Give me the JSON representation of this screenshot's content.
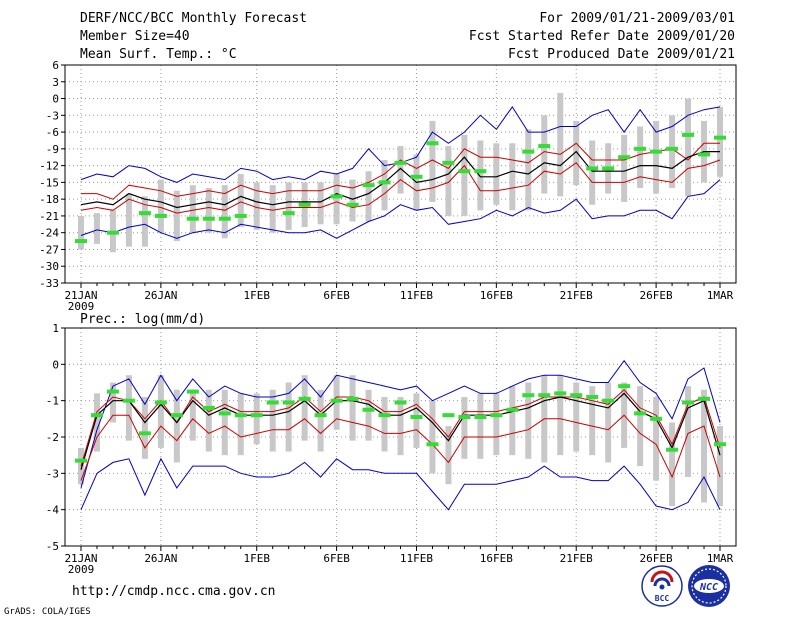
{
  "header": {
    "title": "DERF/NCC/BCC Monthly Forecast",
    "member_size": "Member Size=40",
    "variable": "Mean Surf. Temp.: °C",
    "forecast_period": "For 2009/01/21-2009/03/01",
    "start_date": "Fcst Started Refer Date 2009/01/20",
    "produced_date": "Fcst Produced Date 2009/01/21"
  },
  "footer": {
    "url": "http://cmdp.ncc.cma.gov.cn",
    "grads": "GrADS: COLA/IGES",
    "logo_bcc": "BCC",
    "logo_ncc": "NCC"
  },
  "colors": {
    "envelope": "#0000cc",
    "spread": "#cc0000",
    "mean": "#000000",
    "observed": "#33dd33",
    "bar": "#c8c8c8",
    "grid": "#9a9a9a"
  },
  "chart_data": [
    {
      "type": "line",
      "title": "Mean Surf. Temp.: °C",
      "x": [
        0,
        1,
        2,
        3,
        4,
        5,
        6,
        7,
        8,
        9,
        10,
        11,
        12,
        13,
        14,
        15,
        16,
        17,
        18,
        19,
        20,
        21,
        22,
        23,
        24,
        25,
        26,
        27,
        28,
        29,
        30,
        31,
        32,
        33,
        34,
        35,
        36,
        37,
        38,
        39,
        40
      ],
      "xtick_positions": [
        0,
        5,
        11,
        16,
        21,
        26,
        31,
        36,
        40
      ],
      "xtick_labels": [
        "21JAN",
        "26JAN",
        "1FEB",
        "6FEB",
        "11FEB",
        "16FEB",
        "21FEB",
        "26FEB",
        "1MAR"
      ],
      "xtick_year": "2009",
      "ylim": [
        -33,
        6
      ],
      "yticks": [
        6,
        3,
        0,
        -3,
        -6,
        -9,
        -12,
        -15,
        -18,
        -21,
        -24,
        -27,
        -30,
        -33
      ],
      "ytick_labels": [
        "6",
        "3",
        "0",
        "-3",
        "-6",
        "-9",
        "-12",
        "-15",
        "-18",
        "-21",
        "-24",
        "-27",
        "-30",
        "-33"
      ],
      "grid": true,
      "series": [
        {
          "name": "Ensemble max",
          "values": [
            -14.5,
            -13.5,
            -14,
            -12,
            -12.5,
            -14,
            -15,
            -13.5,
            -14,
            -14.5,
            -12.5,
            -13,
            -14.5,
            -14,
            -14.5,
            -13,
            -13.5,
            -12.5,
            -9,
            -12,
            -11.5,
            -10.5,
            -6,
            -8,
            -6,
            -3,
            -5.5,
            -1.5,
            -6,
            -6,
            -5,
            -5,
            -3,
            -2,
            -6,
            -2,
            -6,
            -5,
            -3,
            -2,
            -1.5
          ]
        },
        {
          "name": "Spread upper",
          "values": [
            -17,
            -17,
            -18,
            -15.5,
            -16,
            -16.5,
            -17.5,
            -17,
            -16.5,
            -17,
            -15.5,
            -16.5,
            -17,
            -16.5,
            -16.5,
            -16.5,
            -15.5,
            -16,
            -15,
            -13.5,
            -11,
            -12.5,
            -11,
            -12.5,
            -9,
            -10.5,
            -10.5,
            -11,
            -11.5,
            -9.5,
            -10,
            -8,
            -11,
            -11,
            -11,
            -10,
            -9.5,
            -9,
            -11,
            -8,
            -8
          ]
        },
        {
          "name": "Ensemble mean",
          "values": [
            -19,
            -18.5,
            -19,
            -17,
            -18,
            -18.5,
            -19.5,
            -19,
            -18.5,
            -19,
            -17.5,
            -18.5,
            -19,
            -18.5,
            -18.5,
            -18.5,
            -17,
            -18,
            -17,
            -15,
            -12.5,
            -15,
            -14.5,
            -13.5,
            -10.5,
            -14,
            -14,
            -13,
            -13.5,
            -11.5,
            -12,
            -9.5,
            -13,
            -13,
            -13,
            -12,
            -12,
            -12.5,
            -10.5,
            -9.5,
            -9.5
          ]
        },
        {
          "name": "Spread lower",
          "values": [
            -20,
            -19.5,
            -20,
            -18,
            -19,
            -19.5,
            -20.5,
            -20,
            -19.5,
            -20,
            -18.5,
            -19.5,
            -20,
            -19.5,
            -19.5,
            -19.5,
            -18.5,
            -19.5,
            -19,
            -17,
            -14.5,
            -16.5,
            -16,
            -15,
            -12,
            -16.5,
            -16.5,
            -16,
            -15.5,
            -13,
            -13.5,
            -11.5,
            -15,
            -15,
            -15,
            -14,
            -14.5,
            -15,
            -12.5,
            -12,
            -11
          ]
        },
        {
          "name": "Ensemble min",
          "values": [
            -24.5,
            -23.5,
            -24,
            -23,
            -22.5,
            -24,
            -25,
            -24,
            -23.5,
            -24,
            -22.5,
            -23,
            -23.5,
            -24,
            -24,
            -23.5,
            -25,
            -23.5,
            -22,
            -21,
            -19,
            -20,
            -19.5,
            -22.5,
            -22,
            -21.5,
            -20,
            -21,
            -19.5,
            -20.5,
            -20,
            -18,
            -21.5,
            -21,
            -21,
            -20,
            -20,
            -21.5,
            -17.5,
            -17,
            -14.5
          ]
        },
        {
          "name": "Observed",
          "values": [
            -25.5,
            null,
            -24,
            null,
            -20.5,
            -21,
            null,
            -21.5,
            -21.5,
            -21.5,
            -21,
            null,
            null,
            -20.5,
            -19,
            null,
            -17.5,
            -19,
            -15.5,
            -15,
            -11.5,
            -14,
            -8,
            -11.5,
            -13,
            -13,
            null,
            null,
            -9.5,
            -8.5,
            null,
            null,
            -12.5,
            -12.5,
            -10.5,
            -9,
            -9.5,
            -9,
            -6.5,
            -10,
            -7
          ]
        }
      ],
      "boxes": [
        {
          "low": -27,
          "high": -21
        },
        {
          "low": -26,
          "high": -20.5
        },
        {
          "low": -27.5,
          "high": -20
        },
        {
          "low": -26.5,
          "high": -17
        },
        {
          "low": -26.5,
          "high": -17.5
        },
        {
          "low": -24,
          "high": -14.5
        },
        {
          "low": -25.5,
          "high": -16.5
        },
        {
          "low": -24,
          "high": -15.5
        },
        {
          "low": -24,
          "high": -16
        },
        {
          "low": -25,
          "high": -15.5
        },
        {
          "low": -23,
          "high": -13.5
        },
        {
          "low": -23.5,
          "high": -15
        },
        {
          "low": -24,
          "high": -15.5
        },
        {
          "low": -23.5,
          "high": -15
        },
        {
          "low": -23,
          "high": -15
        },
        {
          "low": -22.5,
          "high": -15
        },
        {
          "low": -22.5,
          "high": -13.5
        },
        {
          "low": -22,
          "high": -14.5
        },
        {
          "low": -22,
          "high": -13
        },
        {
          "low": -20,
          "high": -11
        },
        {
          "low": -17,
          "high": -8.5
        },
        {
          "low": -20,
          "high": -10
        },
        {
          "low": -18.5,
          "high": -4
        },
        {
          "low": -21,
          "high": -8.5
        },
        {
          "low": -21,
          "high": -6.5
        },
        {
          "low": -20,
          "high": -7.5
        },
        {
          "low": -19,
          "high": -8
        },
        {
          "low": -20,
          "high": -8
        },
        {
          "low": -20,
          "high": -5.5
        },
        {
          "low": -17,
          "high": -3
        },
        {
          "low": -17.5,
          "high": 1
        },
        {
          "low": -15.5,
          "high": -4
        },
        {
          "low": -19,
          "high": -7.5
        },
        {
          "low": -17,
          "high": -8
        },
        {
          "low": -18.5,
          "high": -6.5
        },
        {
          "low": -16,
          "high": -5
        },
        {
          "low": -17,
          "high": -4
        },
        {
          "low": -16,
          "high": -3
        },
        {
          "low": -17.5,
          "high": 0
        },
        {
          "low": -15,
          "high": -4
        },
        {
          "low": -14,
          "high": -1.5
        }
      ]
    },
    {
      "type": "line",
      "title": "Prec.: log(mm/d)",
      "x": [
        0,
        1,
        2,
        3,
        4,
        5,
        6,
        7,
        8,
        9,
        10,
        11,
        12,
        13,
        14,
        15,
        16,
        17,
        18,
        19,
        20,
        21,
        22,
        23,
        24,
        25,
        26,
        27,
        28,
        29,
        30,
        31,
        32,
        33,
        34,
        35,
        36,
        37,
        38,
        39,
        40
      ],
      "xtick_positions": [
        0,
        5,
        11,
        16,
        21,
        26,
        31,
        36,
        40
      ],
      "xtick_labels": [
        "21JAN",
        "26JAN",
        "1FEB",
        "6FEB",
        "11FEB",
        "16FEB",
        "21FEB",
        "26FEB",
        "1MAR"
      ],
      "xtick_year": "2009",
      "ylim": [
        -5,
        1
      ],
      "yticks": [
        1,
        0,
        -1,
        -2,
        -3,
        -4,
        -5
      ],
      "ytick_labels": [
        "1",
        "0",
        "-1",
        "-2",
        "-3",
        "-4",
        "-5"
      ],
      "grid": true,
      "series": [
        {
          "name": "Ensemble max",
          "values": [
            -3.4,
            -1.8,
            -0.6,
            -0.4,
            -1.1,
            -0.3,
            -1.0,
            -0.4,
            -0.9,
            -0.6,
            -0.8,
            -0.9,
            -0.9,
            -0.8,
            -0.4,
            -0.9,
            -0.3,
            -0.4,
            -0.5,
            -0.6,
            -0.7,
            -0.6,
            -1.0,
            -0.8,
            -0.6,
            -0.8,
            -0.8,
            -0.6,
            -0.4,
            -0.3,
            -0.3,
            -0.4,
            -0.5,
            -0.5,
            0.1,
            -0.5,
            -0.8,
            -1.5,
            -0.4,
            -0.1,
            -1.6
          ]
        },
        {
          "name": "Spread upper",
          "values": [
            -2.8,
            -1.3,
            -0.9,
            -1.0,
            -1.5,
            -1.0,
            -1.6,
            -0.9,
            -1.3,
            -1.1,
            -1.3,
            -1.3,
            -1.3,
            -1.2,
            -0.9,
            -1.3,
            -0.9,
            -0.9,
            -1.0,
            -1.3,
            -1.3,
            -1.1,
            -1.5,
            -2.0,
            -1.3,
            -1.3,
            -1.3,
            -1.2,
            -1.1,
            -0.9,
            -0.9,
            -0.9,
            -1.0,
            -1.1,
            -0.7,
            -1.2,
            -1.4,
            -2.2,
            -1.1,
            -0.9,
            -2.3
          ]
        },
        {
          "name": "Ensemble mean",
          "values": [
            -2.9,
            -1.4,
            -1.0,
            -1.0,
            -1.6,
            -1.1,
            -1.6,
            -1.0,
            -1.4,
            -1.2,
            -1.4,
            -1.4,
            -1.4,
            -1.3,
            -1.0,
            -1.4,
            -1.0,
            -1.0,
            -1.1,
            -1.4,
            -1.4,
            -1.2,
            -1.6,
            -2.1,
            -1.4,
            -1.4,
            -1.4,
            -1.3,
            -1.2,
            -1.0,
            -0.9,
            -1.0,
            -1.1,
            -1.2,
            -0.8,
            -1.3,
            -1.5,
            -2.3,
            -1.2,
            -1.0,
            -2.5
          ]
        },
        {
          "name": "Spread lower",
          "values": [
            -3.2,
            -2.0,
            -1.4,
            -1.4,
            -2.3,
            -1.7,
            -2.1,
            -1.5,
            -1.9,
            -1.7,
            -2.0,
            -1.9,
            -1.8,
            -1.8,
            -1.5,
            -1.9,
            -1.5,
            -1.6,
            -1.7,
            -1.9,
            -1.9,
            -1.8,
            -2.2,
            -2.7,
            -2.0,
            -2.0,
            -2.0,
            -1.9,
            -1.8,
            -1.5,
            -1.5,
            -1.6,
            -1.7,
            -1.8,
            -1.4,
            -1.9,
            -2.2,
            -3.1,
            -1.9,
            -1.7,
            -3.1
          ]
        },
        {
          "name": "Ensemble min",
          "values": [
            -4.0,
            -3.0,
            -2.7,
            -2.6,
            -3.6,
            -2.6,
            -3.4,
            -2.8,
            -2.8,
            -2.8,
            -3.0,
            -3.1,
            -3.1,
            -3.0,
            -2.7,
            -3.1,
            -2.6,
            -2.9,
            -2.9,
            -3.0,
            -3.0,
            -3.0,
            -3.5,
            -4.0,
            -3.3,
            -3.3,
            -3.3,
            -3.2,
            -3.1,
            -2.8,
            -3.1,
            -3.1,
            -3.2,
            -3.2,
            -2.8,
            -3.3,
            -3.9,
            -4.0,
            -3.8,
            -3.1,
            -4.0
          ]
        },
        {
          "name": "Observed",
          "values": [
            -2.65,
            -1.4,
            -0.75,
            -1.0,
            -1.9,
            -1.05,
            -1.4,
            -0.75,
            -1.2,
            -1.35,
            -1.4,
            -1.4,
            -1.05,
            -1.05,
            -0.95,
            -1.4,
            -1.0,
            -0.95,
            -1.25,
            -1.4,
            -1.05,
            -1.45,
            -2.2,
            -1.4,
            -1.45,
            -1.45,
            -1.4,
            -1.25,
            -0.85,
            -0.85,
            -0.8,
            -0.85,
            -0.9,
            -1.0,
            -0.6,
            -1.35,
            -1.5,
            -2.35,
            -1.05,
            -0.95,
            -2.2
          ]
        }
      ],
      "boxes": [
        {
          "low": -3.3,
          "high": -2.3
        },
        {
          "low": -2.4,
          "high": -0.8
        },
        {
          "low": -1.6,
          "high": -0.5
        },
        {
          "low": -2.1,
          "high": -0.3
        },
        {
          "low": -2.6,
          "high": -0.9
        },
        {
          "low": -2.3,
          "high": -0.3
        },
        {
          "low": -2.7,
          "high": -0.7
        },
        {
          "low": -2.1,
          "high": -0.7
        },
        {
          "low": -2.4,
          "high": -0.7
        },
        {
          "low": -2.5,
          "high": -0.7
        },
        {
          "low": -2.5,
          "high": -0.8
        },
        {
          "low": -2.2,
          "high": -0.8
        },
        {
          "low": -2.4,
          "high": -0.7
        },
        {
          "low": -2.4,
          "high": -0.5
        },
        {
          "low": -2.1,
          "high": -0.3
        },
        {
          "low": -2.4,
          "high": -0.7
        },
        {
          "low": -1.8,
          "high": -0.3
        },
        {
          "low": -2.1,
          "high": -0.3
        },
        {
          "low": -2.1,
          "high": -0.7
        },
        {
          "low": -2.4,
          "high": -0.9
        },
        {
          "low": -2.5,
          "high": -0.9
        },
        {
          "low": -2.3,
          "high": -0.8
        },
        {
          "low": -3.0,
          "high": -1.0
        },
        {
          "low": -3.3,
          "high": -1.7
        },
        {
          "low": -2.6,
          "high": -0.9
        },
        {
          "low": -2.6,
          "high": -0.8
        },
        {
          "low": -2.5,
          "high": -0.8
        },
        {
          "low": -2.5,
          "high": -0.6
        },
        {
          "low": -2.6,
          "high": -0.5
        },
        {
          "low": -2.7,
          "high": -0.3
        },
        {
          "low": -2.5,
          "high": -0.3
        },
        {
          "low": -2.4,
          "high": -0.5
        },
        {
          "low": -2.5,
          "high": -0.6
        },
        {
          "low": -2.7,
          "high": -0.5
        },
        {
          "low": -2.3,
          "high": -0.5
        },
        {
          "low": -2.8,
          "high": -0.6
        },
        {
          "low": -3.2,
          "high": -0.9
        },
        {
          "low": -3.9,
          "high": -1.6
        },
        {
          "low": -3.1,
          "high": -0.6
        },
        {
          "low": -3.8,
          "high": -0.7
        },
        {
          "low": -3.9,
          "high": -1.7
        }
      ]
    }
  ]
}
